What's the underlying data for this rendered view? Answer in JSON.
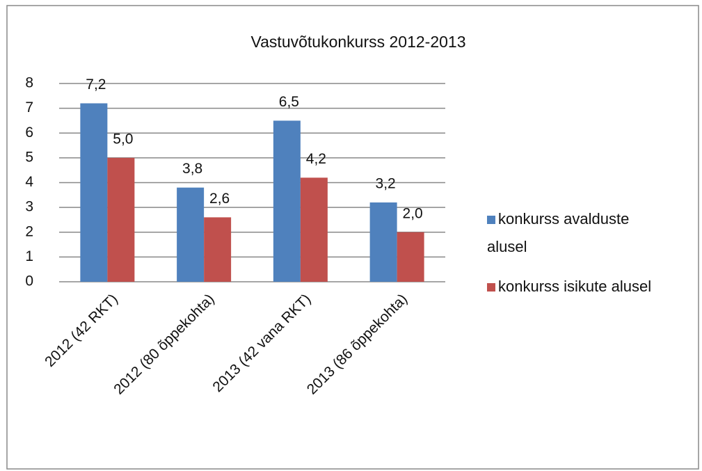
{
  "chart_data": {
    "type": "bar",
    "title": "Vastuvõtukonkurss 2012-2013",
    "categories": [
      "2012 (42 RKT)",
      "2012 (80 õppekohta)",
      "2013 (42 vana RKT)",
      "2013 (86 õppekohta)"
    ],
    "series": [
      {
        "name": "konkurss avalduste alusel",
        "color": "#4f81bd",
        "values": [
          7.2,
          3.8,
          6.5,
          3.2
        ],
        "value_labels": [
          "7,2",
          "3,8",
          "6,5",
          "3,2"
        ]
      },
      {
        "name": "konkurss isikute alusel",
        "color": "#c0504d",
        "values": [
          5.0,
          2.6,
          4.2,
          2.0
        ],
        "value_labels": [
          "5,0",
          "2,6",
          "4,2",
          "2,0"
        ]
      }
    ],
    "ylim": [
      0,
      8
    ],
    "yticks": [
      0,
      1,
      2,
      3,
      4,
      5,
      6,
      7,
      8
    ],
    "grid": true,
    "legend": "right"
  }
}
